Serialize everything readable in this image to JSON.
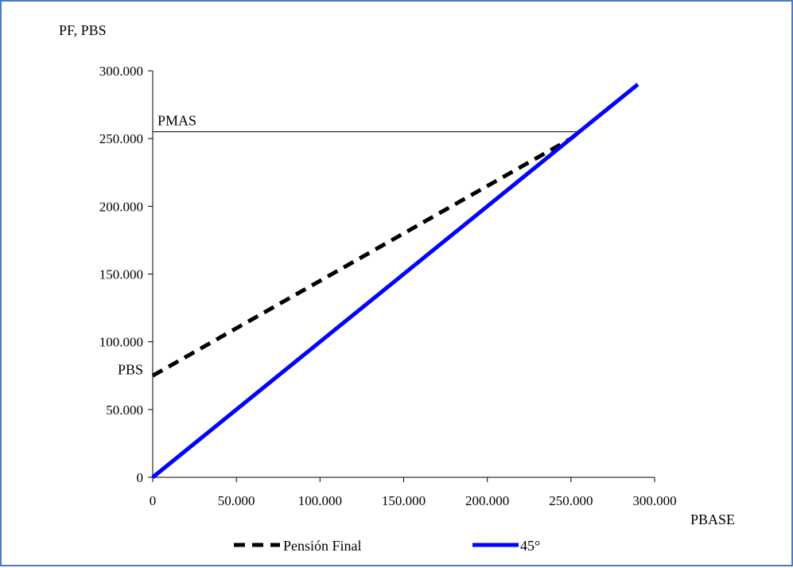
{
  "chart_data": {
    "type": "line",
    "y_axis_title": "PF, PBS",
    "x_axis_title": "PBASE",
    "xlim": [
      0,
      300000
    ],
    "ylim": [
      0,
      300000
    ],
    "x_ticks": [
      0,
      50000,
      100000,
      150000,
      200000,
      250000,
      300000
    ],
    "y_ticks": [
      0,
      50000,
      100000,
      150000,
      200000,
      250000,
      300000
    ],
    "x_tick_labels": [
      "0",
      "50.000",
      "100.000",
      "150.000",
      "200.000",
      "250.000",
      "300.000"
    ],
    "y_tick_labels": [
      "0",
      "50.000",
      "100.000",
      "150.000",
      "200.000",
      "250.000",
      "300.000"
    ],
    "grid": false,
    "legend_position": "bottom",
    "series": [
      {
        "name": "Pensión Final",
        "style": "dashed",
        "color": "#000000",
        "x": [
          0,
          50000,
          100000,
          150000,
          200000,
          250000,
          255000
        ],
        "y": [
          75000,
          110000,
          145000,
          180000,
          215000,
          250000,
          255000
        ]
      },
      {
        "name": "45°",
        "style": "solid",
        "color": "#0000ff",
        "x": [
          0,
          290000
        ],
        "y": [
          0,
          290000
        ]
      }
    ],
    "annotations": [
      {
        "text": "PMAS",
        "type": "hline",
        "y": 255000,
        "x_end": 255000
      },
      {
        "text": "PBS",
        "type": "label",
        "y": 75000
      }
    ]
  }
}
